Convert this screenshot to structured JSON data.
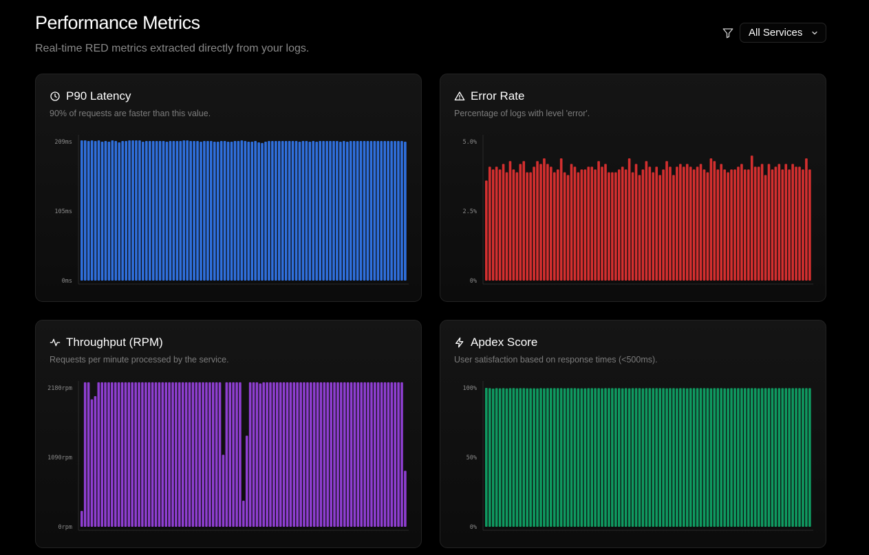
{
  "header": {
    "title": "Performance Metrics",
    "subtitle": "Real-time RED metrics extracted directly from your logs."
  },
  "filter": {
    "icon": "filter-icon",
    "selected": "All Services"
  },
  "cards": [
    {
      "key": "latency",
      "icon": "clock-icon",
      "title": "P90 Latency",
      "description": "90% of requests are faster than this value.",
      "color": "#2f6fdc"
    },
    {
      "key": "error",
      "icon": "warning-triangle-icon",
      "title": "Error Rate",
      "description": "Percentage of logs with level 'error'.",
      "color": "#d32f2f"
    },
    {
      "key": "throughput",
      "icon": "activity-icon",
      "title": "Throughput (RPM)",
      "description": "Requests per minute processed by the service.",
      "color": "#8e3ed0"
    },
    {
      "key": "apdex",
      "icon": "zap-icon",
      "title": "Apdex Score",
      "description": "User satisfaction based on response times (<500ms).",
      "color": "#0f9960"
    }
  ],
  "chart_data": [
    {
      "type": "bar",
      "title": "P90 Latency",
      "yticks": [
        "0ms",
        "105ms",
        "209ms"
      ],
      "ylim": [
        0,
        209
      ],
      "values": [
        211,
        211,
        210,
        211,
        210,
        211,
        209,
        210,
        209,
        211,
        210,
        208,
        210,
        210,
        211,
        211,
        211,
        211,
        209,
        210,
        210,
        210,
        210,
        210,
        210,
        209,
        210,
        210,
        210,
        210,
        211,
        211,
        210,
        210,
        210,
        209,
        210,
        210,
        210,
        209,
        209,
        210,
        210,
        209,
        209,
        210,
        210,
        211,
        210,
        209,
        209,
        210,
        208,
        207,
        209,
        210,
        210,
        210,
        210,
        210,
        210,
        210,
        210,
        210,
        209,
        210,
        210,
        209,
        210,
        209,
        210,
        210,
        210,
        210,
        210,
        210,
        209,
        210,
        209,
        210,
        210,
        210,
        210,
        210,
        210,
        210,
        210,
        210,
        210,
        210,
        210,
        210,
        210,
        210,
        210,
        209
      ]
    },
    {
      "type": "bar",
      "title": "Error Rate",
      "yticks": [
        "0%",
        "2.5%",
        "5.0%"
      ],
      "ylim": [
        0,
        5.0
      ],
      "values": [
        3.6,
        4.1,
        4.0,
        4.1,
        4.0,
        4.2,
        3.9,
        4.3,
        4.0,
        3.9,
        4.2,
        4.3,
        3.9,
        3.9,
        4.1,
        4.3,
        4.2,
        4.4,
        4.2,
        4.1,
        3.9,
        4.0,
        4.4,
        3.9,
        3.8,
        4.2,
        4.1,
        3.9,
        4.0,
        4.0,
        4.1,
        4.1,
        4.0,
        4.3,
        4.1,
        4.2,
        3.9,
        3.9,
        3.9,
        4.0,
        4.1,
        4.0,
        4.4,
        3.9,
        4.2,
        3.8,
        4.0,
        4.3,
        4.1,
        3.9,
        4.1,
        3.8,
        4.0,
        4.3,
        4.1,
        3.8,
        4.1,
        4.2,
        4.1,
        4.2,
        4.1,
        4.0,
        4.1,
        4.2,
        4.0,
        3.9,
        4.4,
        4.3,
        4.0,
        4.2,
        4.0,
        3.9,
        4.0,
        4.0,
        4.1,
        4.2,
        4.0,
        4.0,
        4.5,
        4.1,
        4.1,
        4.2,
        3.8,
        4.2,
        4.0,
        4.1,
        4.2,
        4.0,
        4.2,
        4.0,
        4.2,
        4.1,
        4.1,
        4.0,
        4.4,
        4.0
      ]
    },
    {
      "type": "bar",
      "title": "Throughput (RPM)",
      "yticks": [
        "0rpm",
        "1090rpm",
        "2180rpm"
      ],
      "ylim": [
        0,
        2180
      ],
      "values": [
        250,
        2300,
        2320,
        2000,
        2050,
        2290,
        2310,
        2320,
        2320,
        2320,
        2330,
        2330,
        2320,
        2320,
        2330,
        2320,
        2320,
        2330,
        2320,
        2320,
        2330,
        2320,
        2320,
        2310,
        2320,
        2320,
        2330,
        2330,
        2320,
        2320,
        2310,
        2320,
        2320,
        2310,
        2320,
        2320,
        2320,
        2320,
        2320,
        2310,
        2300,
        2320,
        1130,
        2320,
        2290,
        2320,
        2290,
        2280,
        410,
        1430,
        2320,
        2320,
        2320,
        2250,
        2310,
        2320,
        2320,
        2320,
        2330,
        2320,
        2320,
        2320,
        2290,
        2300,
        2320,
        2330,
        2320,
        2320,
        2300,
        2310,
        2320,
        2310,
        2330,
        2320,
        2320,
        2320,
        2320,
        2290,
        2320,
        2300,
        2310,
        2330,
        2320,
        2320,
        2320,
        2310,
        2320,
        2320,
        2320,
        2300,
        2320,
        2320,
        2320,
        2300,
        2320,
        2300,
        880
      ]
    },
    {
      "type": "bar",
      "title": "Apdex Score",
      "yticks": [
        "0%",
        "50%",
        "100%"
      ],
      "ylim": [
        0,
        100
      ],
      "values": [
        100,
        99.8,
        99.5,
        99.8,
        99.7,
        99.8,
        99.6,
        99.8,
        99.9,
        99.7,
        99.8,
        99.8,
        99.7,
        99.7,
        99.7,
        99.6,
        99.8,
        99.7,
        99.8,
        99.8,
        99.8,
        99.8,
        99.8,
        99.7,
        99.8,
        99.8,
        99.8,
        99.7,
        99.7,
        99.7,
        99.8,
        99.8,
        99.8,
        99.8,
        99.7,
        99.8,
        99.8,
        99.8,
        99.8,
        99.8,
        99.7,
        99.8,
        99.7,
        99.8,
        99.8,
        99.8,
        99.7,
        99.8,
        99.8,
        99.8,
        99.8,
        99.8,
        99.8,
        99.7,
        99.8,
        99.8,
        99.7,
        99.8,
        99.8,
        99.7,
        99.8,
        99.8,
        99.8,
        99.8,
        99.8,
        99.8,
        99.7,
        99.8,
        99.8,
        99.8,
        99.7,
        99.7,
        99.8,
        99.8,
        99.8,
        99.8,
        99.8,
        99.8,
        99.8,
        99.8,
        99.7,
        99.8,
        99.8,
        99.8,
        99.8,
        99.8,
        99.8,
        99.8,
        99.8,
        99.8,
        99.8,
        99.8,
        99.8,
        99.8,
        99.8,
        99.8
      ]
    }
  ]
}
